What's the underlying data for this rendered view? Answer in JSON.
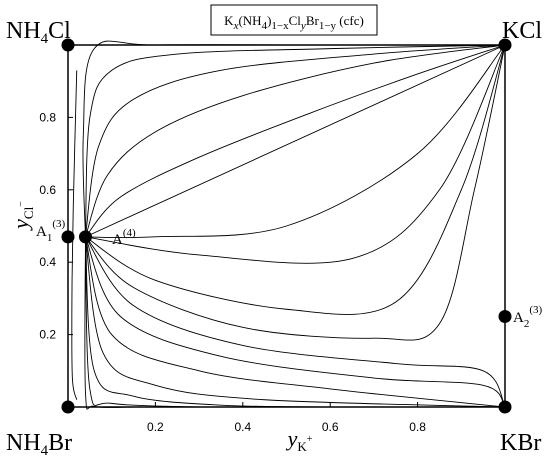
{
  "chart_data": {
    "type": "line",
    "title": "Kx(NH4)1−xClyBr1−y (cfc)",
    "xlabel": "yK+",
    "ylabel": "yCl−",
    "xlim": [
      0,
      1
    ],
    "ylim": [
      0,
      1
    ],
    "x_ticks": [
      "0.2",
      "0.4",
      "0.6",
      "0.8"
    ],
    "y_ticks": [
      "0.2",
      "0.4",
      "0.6",
      "0.8"
    ],
    "grid": false,
    "legend": "none",
    "corners": {
      "top_left": "NH4Cl",
      "top_right": "KCl",
      "bottom_left": "NH4Br",
      "bottom_right": "KBr"
    },
    "points": [
      {
        "name": "A1(3)",
        "x": 0.0,
        "y": 0.47
      },
      {
        "name": "A(4)",
        "x": 0.04,
        "y": 0.47
      },
      {
        "name": "A2(3)",
        "x": 1.0,
        "y": 0.25
      },
      {
        "name": "NH4Cl",
        "x": 0.0,
        "y": 1.0
      },
      {
        "name": "KCl",
        "x": 1.0,
        "y": 1.0
      },
      {
        "name": "NH4Br",
        "x": 0.0,
        "y": 0.0
      },
      {
        "name": "KBr",
        "x": 1.0,
        "y": 0.0
      }
    ],
    "series": [
      {
        "values": [
          [
            0.04,
            0.47
          ],
          [
            0.035,
            0.75
          ],
          [
            0.06,
            0.99
          ],
          [
            0.2,
            1.0
          ],
          [
            0.6,
            1.0
          ]
        ]
      },
      {
        "values": [
          [
            0.04,
            0.47
          ],
          [
            0.05,
            0.8
          ],
          [
            0.1,
            0.93
          ],
          [
            0.25,
            0.975
          ],
          [
            0.6,
            0.99
          ],
          [
            1.0,
            1.0
          ]
        ]
      },
      {
        "values": [
          [
            0.04,
            0.47
          ],
          [
            0.07,
            0.72
          ],
          [
            0.15,
            0.85
          ],
          [
            0.35,
            0.93
          ],
          [
            0.7,
            0.975
          ],
          [
            1.0,
            1.0
          ]
        ]
      },
      {
        "values": [
          [
            0.04,
            0.47
          ],
          [
            0.09,
            0.64
          ],
          [
            0.2,
            0.76
          ],
          [
            0.4,
            0.86
          ],
          [
            0.7,
            0.95
          ],
          [
            1.0,
            1.0
          ]
        ]
      },
      {
        "values": [
          [
            0.04,
            0.47
          ],
          [
            0.12,
            0.58
          ],
          [
            0.3,
            0.69
          ],
          [
            0.55,
            0.81
          ],
          [
            0.8,
            0.92
          ],
          [
            1.0,
            1.0
          ]
        ]
      },
      {
        "values": [
          [
            0.04,
            0.47
          ],
          [
            1.0,
            1.0
          ]
        ]
      },
      {
        "values": [
          [
            0.04,
            0.47
          ],
          [
            0.2,
            0.47
          ],
          [
            0.5,
            0.5
          ],
          [
            0.8,
            0.7
          ],
          [
            1.0,
            1.0
          ]
        ]
      },
      {
        "values": [
          [
            0.04,
            0.47
          ],
          [
            0.3,
            0.42
          ],
          [
            0.65,
            0.41
          ],
          [
            0.85,
            0.6
          ],
          [
            1.0,
            1.0
          ]
        ]
      },
      {
        "values": [
          [
            0.04,
            0.47
          ],
          [
            0.2,
            0.35
          ],
          [
            0.5,
            0.27
          ],
          [
            0.75,
            0.29
          ],
          [
            0.9,
            0.6
          ],
          [
            1.0,
            1.0
          ]
        ]
      },
      {
        "values": [
          [
            0.04,
            0.47
          ],
          [
            0.15,
            0.33
          ],
          [
            0.4,
            0.22
          ],
          [
            0.7,
            0.19
          ],
          [
            0.85,
            0.23
          ],
          [
            0.93,
            0.6
          ],
          [
            1.0,
            1.0
          ]
        ]
      },
      {
        "values": [
          [
            0.04,
            0.47
          ],
          [
            0.15,
            0.28
          ],
          [
            0.4,
            0.17
          ],
          [
            0.75,
            0.12
          ],
          [
            0.95,
            0.1
          ],
          [
            1.0,
            0.0
          ]
        ]
      },
      {
        "values": [
          [
            0.04,
            0.47
          ],
          [
            0.12,
            0.25
          ],
          [
            0.35,
            0.14
          ],
          [
            0.7,
            0.08
          ],
          [
            0.95,
            0.06
          ],
          [
            1.0,
            0.0
          ]
        ]
      },
      {
        "values": [
          [
            0.04,
            0.47
          ],
          [
            0.1,
            0.2
          ],
          [
            0.3,
            0.1
          ],
          [
            0.6,
            0.05
          ],
          [
            1.0,
            0.0
          ]
        ]
      },
      {
        "values": [
          [
            0.04,
            0.47
          ],
          [
            0.08,
            0.15
          ],
          [
            0.2,
            0.06
          ],
          [
            0.45,
            0.02
          ],
          [
            1.0,
            0.0
          ]
        ]
      },
      {
        "values": [
          [
            0.04,
            0.47
          ],
          [
            0.06,
            0.1
          ],
          [
            0.15,
            0.03
          ],
          [
            0.35,
            0.005
          ],
          [
            0.6,
            0.0
          ]
        ]
      },
      {
        "values": [
          [
            0.04,
            0.47
          ],
          [
            0.05,
            0.05
          ],
          [
            0.1,
            0.01
          ],
          [
            0.3,
            0.0
          ]
        ]
      },
      {
        "values": [
          [
            0.04,
            0.47
          ],
          [
            0.04,
            0.04
          ],
          [
            0.06,
            0.002
          ],
          [
            0.15,
            0.0
          ]
        ]
      },
      {
        "values": [
          [
            0.02,
            0.93
          ],
          [
            0.012,
            0.55
          ],
          [
            0.009,
            0.3
          ],
          [
            0.01,
            0.08
          ],
          [
            0.02,
            0.02
          ]
        ]
      }
    ]
  }
}
